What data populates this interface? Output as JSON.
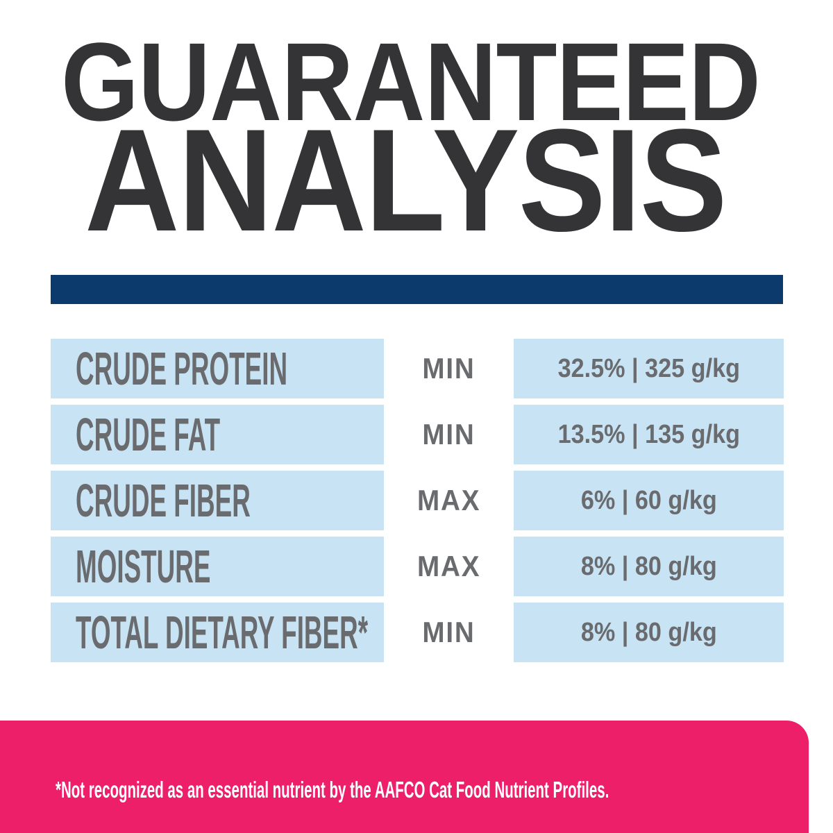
{
  "title": {
    "line1": "GUARANTEED",
    "line2": "ANALYSIS"
  },
  "colors": {
    "title_text": "#343436",
    "divider_navy": "#0c3a6c",
    "cell_light_blue": "#c8e4f4",
    "table_text_gray": "#6a6b6e",
    "footer_pink": "#ec1f68",
    "footer_text": "#ffffff"
  },
  "table": {
    "rows": [
      {
        "nutrient": "CRUDE PROTEIN",
        "basis": "MIN",
        "value": "32.5% | 325 g/kg"
      },
      {
        "nutrient": "CRUDE FAT",
        "basis": "MIN",
        "value": "13.5% | 135 g/kg"
      },
      {
        "nutrient": "CRUDE FIBER",
        "basis": "MAX",
        "value": "6% | 60 g/kg"
      },
      {
        "nutrient": "MOISTURE",
        "basis": "MAX",
        "value": "8% | 80 g/kg"
      },
      {
        "nutrient": "TOTAL DIETARY FIBER*",
        "basis": "MIN",
        "value": "8% | 80 g/kg"
      }
    ]
  },
  "footer": {
    "note": "*Not recognized as an essential nutrient by the AAFCO Cat Food Nutrient Profiles."
  }
}
